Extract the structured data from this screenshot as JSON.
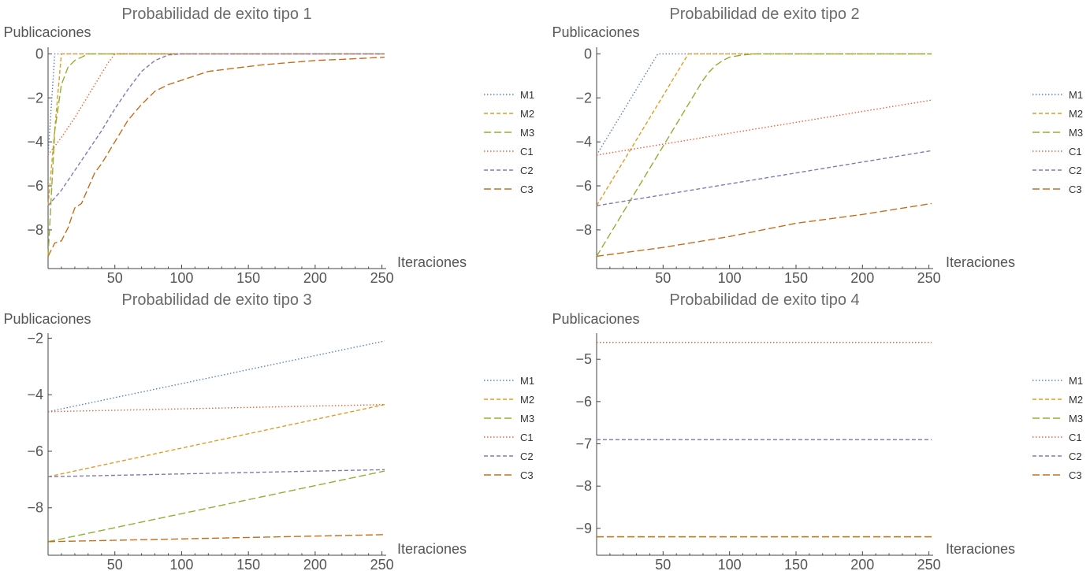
{
  "series_styles": [
    {
      "name": "M1",
      "color": "#5e81b5",
      "dash": "1.5 2.5"
    },
    {
      "name": "M2",
      "color": "#e19c24",
      "dash": "5 3"
    },
    {
      "name": "M3",
      "color": "#8fb032",
      "dash": "9 4"
    },
    {
      "name": "C1",
      "color": "#eb6235",
      "dash": "1.5 2.5"
    },
    {
      "name": "C2",
      "color": "#8778b3",
      "dash": "5 3"
    },
    {
      "name": "C3",
      "color": "#c56e1a",
      "dash": "9 4"
    }
  ],
  "chart_data": [
    {
      "type": "line",
      "title": "Probabilidad de exito tipo 1",
      "xlabel": "Iteraciones",
      "ylabel": "Publicaciones",
      "xlim": [
        0,
        252
      ],
      "ylim": [
        -9.4,
        0.3
      ],
      "xticks": [
        50,
        100,
        150,
        200,
        250
      ],
      "yticks": [
        0,
        -2,
        -4,
        -6,
        -8
      ],
      "legend_position": "right",
      "series": [
        {
          "name": "M1",
          "x": [
            0,
            5,
            252
          ],
          "y": [
            -4.6,
            0,
            0
          ]
        },
        {
          "name": "M2",
          "x": [
            0,
            10,
            252
          ],
          "y": [
            -6.9,
            0,
            0
          ]
        },
        {
          "name": "M3",
          "x": [
            0,
            5,
            10,
            15,
            20,
            25,
            30,
            252
          ],
          "y": [
            -9.2,
            -3.5,
            -1.4,
            -0.6,
            -0.3,
            -0.15,
            0,
            0
          ]
        },
        {
          "name": "C1",
          "x": [
            0,
            10,
            20,
            30,
            40,
            45,
            50,
            252
          ],
          "y": [
            -4.6,
            -3.8,
            -2.9,
            -1.9,
            -0.9,
            -0.4,
            0,
            0
          ]
        },
        {
          "name": "C2",
          "x": [
            0,
            10,
            20,
            30,
            40,
            50,
            60,
            70,
            80,
            90,
            100,
            252
          ],
          "y": [
            -6.9,
            -6.2,
            -5.3,
            -4.4,
            -3.5,
            -2.5,
            -1.6,
            -0.8,
            -0.3,
            -0.05,
            0,
            0
          ]
        },
        {
          "name": "C3",
          "x": [
            0,
            5,
            10,
            15,
            20,
            25,
            30,
            35,
            40,
            50,
            60,
            70,
            80,
            90,
            100,
            120,
            140,
            160,
            180,
            200,
            220,
            252
          ],
          "y": [
            -9.2,
            -8.6,
            -8.5,
            -7.9,
            -7.0,
            -6.8,
            -6.1,
            -5.4,
            -5.0,
            -4.0,
            -3.0,
            -2.3,
            -1.7,
            -1.4,
            -1.2,
            -0.8,
            -0.65,
            -0.5,
            -0.4,
            -0.3,
            -0.25,
            -0.15
          ]
        }
      ]
    },
    {
      "type": "line",
      "title": "Probabilidad de exito tipo 2",
      "xlabel": "Iteraciones",
      "ylabel": "Publicaciones",
      "xlim": [
        0,
        252
      ],
      "ylim": [
        -9.4,
        0.3
      ],
      "xticks": [
        50,
        100,
        150,
        200,
        250
      ],
      "yticks": [
        0,
        -2,
        -4,
        -6,
        -8
      ],
      "legend_position": "right",
      "series": [
        {
          "name": "M1",
          "x": [
            0,
            46,
            252
          ],
          "y": [
            -4.6,
            0,
            0
          ]
        },
        {
          "name": "M2",
          "x": [
            0,
            69,
            252
          ],
          "y": [
            -6.9,
            0,
            0
          ]
        },
        {
          "name": "M3",
          "x": [
            0,
            80,
            85,
            90,
            95,
            100,
            110,
            120,
            252
          ],
          "y": [
            -9.2,
            -1.2,
            -0.8,
            -0.5,
            -0.3,
            -0.15,
            -0.05,
            0,
            0
          ]
        },
        {
          "name": "C1",
          "x": [
            0,
            252
          ],
          "y": [
            -4.6,
            -2.1
          ]
        },
        {
          "name": "C2",
          "x": [
            0,
            252
          ],
          "y": [
            -6.9,
            -4.4
          ]
        },
        {
          "name": "C3",
          "x": [
            0,
            50,
            100,
            150,
            200,
            252
          ],
          "y": [
            -9.2,
            -8.8,
            -8.3,
            -7.7,
            -7.3,
            -6.8
          ]
        }
      ]
    },
    {
      "type": "line",
      "title": "Probabilidad de exito tipo 3",
      "xlabel": "Iteraciones",
      "ylabel": "Publicaciones",
      "xlim": [
        0,
        252
      ],
      "ylim": [
        -9.4,
        -1.85
      ],
      "xticks": [
        50,
        100,
        150,
        200,
        250
      ],
      "yticks": [
        -2,
        -4,
        -6,
        -8
      ],
      "legend_position": "right",
      "series": [
        {
          "name": "M1",
          "x": [
            0,
            252
          ],
          "y": [
            -4.6,
            -2.1
          ]
        },
        {
          "name": "M2",
          "x": [
            0,
            252
          ],
          "y": [
            -6.9,
            -4.35
          ]
        },
        {
          "name": "M3",
          "x": [
            0,
            252
          ],
          "y": [
            -9.2,
            -6.7
          ]
        },
        {
          "name": "C1",
          "x": [
            0,
            252
          ],
          "y": [
            -4.6,
            -4.35
          ]
        },
        {
          "name": "C2",
          "x": [
            0,
            252
          ],
          "y": [
            -6.9,
            -6.65
          ]
        },
        {
          "name": "C3",
          "x": [
            0,
            252
          ],
          "y": [
            -9.2,
            -8.95
          ]
        }
      ]
    },
    {
      "type": "line",
      "title": "Probabilidad de exito tipo 4",
      "xlabel": "Iteraciones",
      "ylabel": "Publicaciones",
      "xlim": [
        0,
        252
      ],
      "ylim": [
        -9.45,
        -4.4
      ],
      "xticks": [
        50,
        100,
        150,
        200,
        250
      ],
      "yticks": [
        -5,
        -6,
        -7,
        -8,
        -9
      ],
      "legend_position": "right",
      "series": [
        {
          "name": "M1",
          "x": [
            0,
            252
          ],
          "y": [
            -4.6,
            -4.6
          ]
        },
        {
          "name": "M2",
          "x": [
            0,
            252
          ],
          "y": [
            -6.9,
            -6.9
          ]
        },
        {
          "name": "M3",
          "x": [
            0,
            252
          ],
          "y": [
            -9.2,
            -9.2
          ]
        },
        {
          "name": "C1",
          "x": [
            0,
            252
          ],
          "y": [
            -4.6,
            -4.6
          ]
        },
        {
          "name": "C2",
          "x": [
            0,
            252
          ],
          "y": [
            -6.9,
            -6.9
          ]
        },
        {
          "name": "C3",
          "x": [
            0,
            252
          ],
          "y": [
            -9.2,
            -9.2
          ]
        }
      ]
    }
  ]
}
